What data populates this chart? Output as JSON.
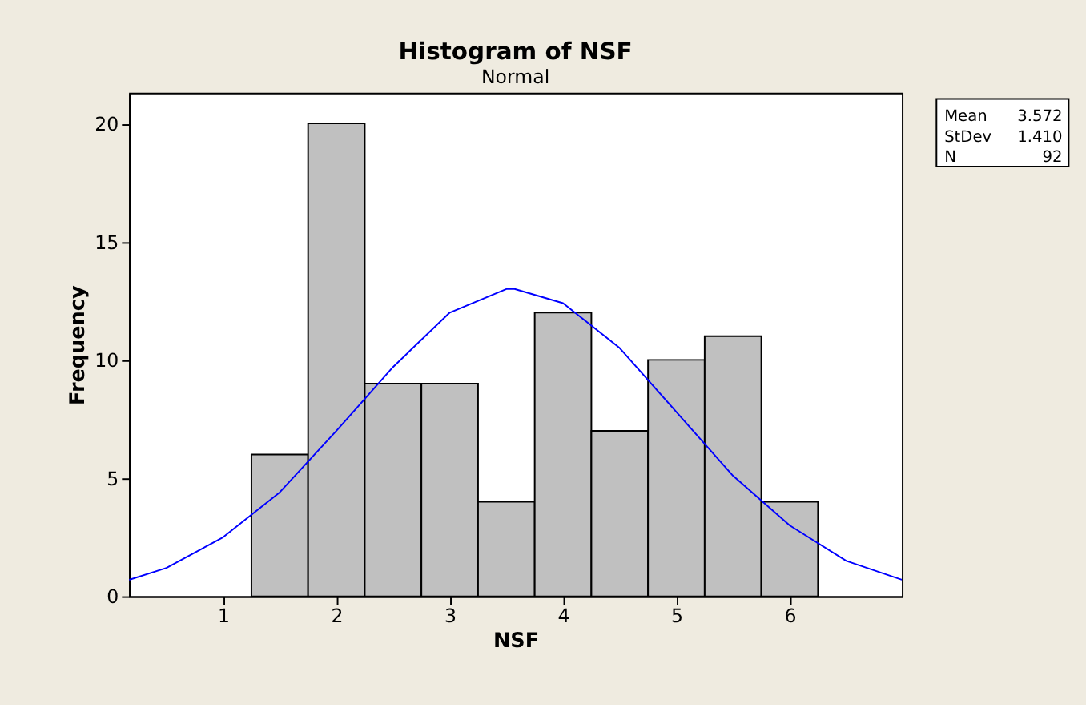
{
  "chart_data": {
    "type": "histogram",
    "title": "Histogram of NSF",
    "subtitle": "Normal",
    "xlabel": "NSF",
    "ylabel": "Frequency",
    "bins": [
      1.25,
      1.75,
      2.25,
      2.75,
      3.25,
      3.75,
      4.25,
      4.75,
      5.25,
      5.75,
      6.25
    ],
    "values": [
      6,
      20,
      9,
      9,
      4,
      12,
      7,
      10,
      11,
      4
    ],
    "color": "#c0c0c0",
    "series": [
      {
        "type": "line",
        "color": "#0000ff",
        "x": [
          0.17,
          0.5,
          1,
          1.5,
          2,
          2.5,
          3,
          3.5,
          3.572,
          4,
          4.5,
          5,
          5.5,
          6,
          6.5,
          6.99
        ],
        "values": [
          0.7,
          1.2,
          2.5,
          4.4,
          7.0,
          9.7,
          12.0,
          13.0,
          13.0,
          12.4,
          10.5,
          7.8,
          5.1,
          3.0,
          1.5,
          0.7
        ]
      }
    ],
    "xlim": [
      0.17,
      6.99
    ],
    "xticks": [
      1,
      2,
      3,
      4,
      5,
      6
    ],
    "ylim": [
      0,
      21.3
    ],
    "yticks": [
      0,
      5,
      10,
      15,
      20
    ],
    "grid": false,
    "annotations": [
      "Mean 3.572",
      "StDev 1.410",
      "N 92"
    ]
  }
}
